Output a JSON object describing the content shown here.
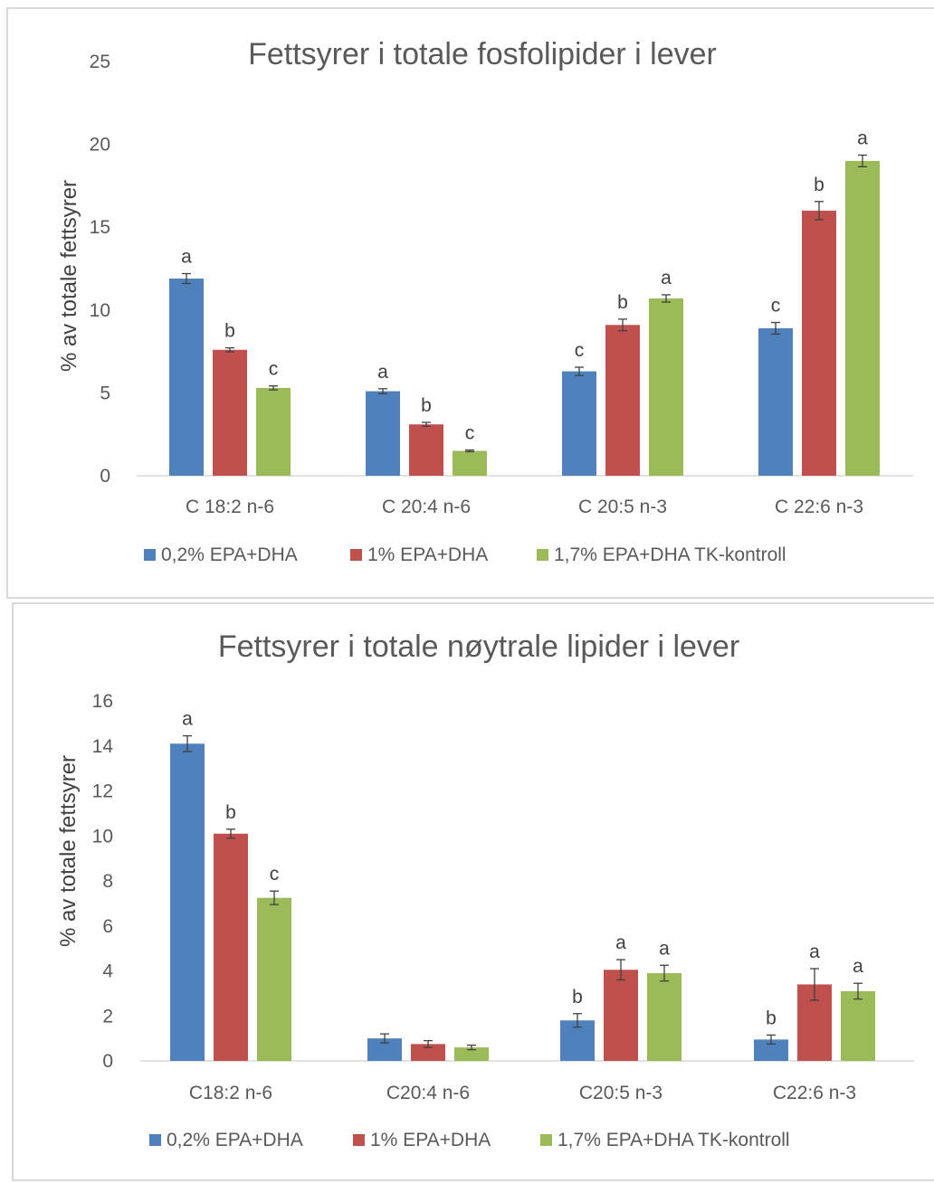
{
  "chart_data": [
    {
      "type": "bar",
      "title": "Fettsyrer i totale fosfolipider i lever",
      "ylabel": "% av totale fettsyrer",
      "xlabel": "",
      "ylim": [
        0,
        25
      ],
      "yticks": [
        0,
        5,
        10,
        15,
        20,
        25
      ],
      "categories": [
        "C 18:2 n-6",
        "C 20:4 n-6",
        "C 20:5 n-3",
        "C 22:6 n-3"
      ],
      "legend_position": "bottom",
      "grid": false,
      "series": [
        {
          "name": "0,2% EPA+DHA",
          "color": "#4f81bd",
          "values": [
            11.9,
            5.1,
            6.3,
            8.9
          ],
          "errors": [
            0.3,
            0.15,
            0.25,
            0.35
          ],
          "labels": [
            "a",
            "a",
            "c",
            "c"
          ]
        },
        {
          "name": "1% EPA+DHA",
          "color": "#c0504d",
          "values": [
            7.6,
            3.1,
            9.1,
            16.0
          ],
          "errors": [
            0.12,
            0.12,
            0.35,
            0.55
          ],
          "labels": [
            "b",
            "b",
            "b",
            "b"
          ]
        },
        {
          "name": "1,7% EPA+DHA TK-kontroll",
          "color": "#9bbb59",
          "values": [
            5.3,
            1.5,
            10.7,
            19.0
          ],
          "errors": [
            0.12,
            0.05,
            0.22,
            0.35
          ],
          "labels": [
            "c",
            "c",
            "a",
            "a"
          ]
        }
      ]
    },
    {
      "type": "bar",
      "title": "Fettsyrer i totale nøytrale lipider i lever",
      "ylabel": "% av totale fettsyrer",
      "xlabel": "",
      "ylim": [
        0,
        16
      ],
      "yticks": [
        0,
        2,
        4,
        6,
        8,
        10,
        12,
        14,
        16
      ],
      "categories": [
        "C18:2 n-6",
        "C20:4 n-6",
        "C20:5 n-3",
        "C22:6 n-3"
      ],
      "legend_position": "bottom",
      "grid": false,
      "series": [
        {
          "name": "0,2% EPA+DHA",
          "color": "#4f81bd",
          "values": [
            14.1,
            1.0,
            1.8,
            0.95
          ],
          "errors": [
            0.35,
            0.2,
            0.3,
            0.2
          ],
          "labels": [
            "a",
            "",
            "b",
            "b"
          ]
        },
        {
          "name": "1% EPA+DHA",
          "color": "#c0504d",
          "values": [
            10.1,
            0.75,
            4.05,
            3.4
          ],
          "errors": [
            0.2,
            0.15,
            0.45,
            0.7
          ],
          "labels": [
            "b",
            "",
            "a",
            "a"
          ]
        },
        {
          "name": "1,7% EPA+DHA TK-kontroll",
          "color": "#9bbb59",
          "values": [
            7.25,
            0.6,
            3.9,
            3.1
          ],
          "errors": [
            0.3,
            0.1,
            0.35,
            0.35
          ],
          "labels": [
            "c",
            "",
            "a",
            "a"
          ]
        }
      ]
    }
  ]
}
